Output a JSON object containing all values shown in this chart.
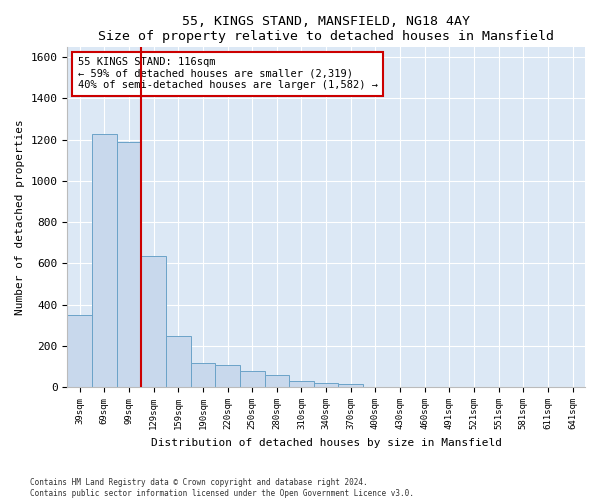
{
  "title": "55, KINGS STAND, MANSFIELD, NG18 4AY",
  "subtitle": "Size of property relative to detached houses in Mansfield",
  "xlabel": "Distribution of detached houses by size in Mansfield",
  "ylabel": "Number of detached properties",
  "footer": "Contains HM Land Registry data © Crown copyright and database right 2024.\nContains public sector information licensed under the Open Government Licence v3.0.",
  "categories": [
    "39sqm",
    "69sqm",
    "99sqm",
    "129sqm",
    "159sqm",
    "190sqm",
    "220sqm",
    "250sqm",
    "280sqm",
    "310sqm",
    "340sqm",
    "370sqm",
    "400sqm",
    "430sqm",
    "460sqm",
    "491sqm",
    "521sqm",
    "551sqm",
    "581sqm",
    "611sqm",
    "641sqm"
  ],
  "values": [
    350,
    1230,
    1190,
    635,
    250,
    115,
    110,
    80,
    60,
    30,
    20,
    15,
    0,
    0,
    0,
    0,
    0,
    0,
    0,
    0,
    0
  ],
  "bar_color": "#c8d8ec",
  "bar_edge_color": "#6ba3c8",
  "background_color": "#dce8f5",
  "annotation_text": "55 KINGS STAND: 116sqm\n← 59% of detached houses are smaller (2,319)\n40% of semi-detached houses are larger (1,582) →",
  "annotation_box_color": "#cc0000",
  "red_line_x": 2.5,
  "ylim": [
    0,
    1650
  ],
  "yticks": [
    0,
    200,
    400,
    600,
    800,
    1000,
    1200,
    1400,
    1600
  ]
}
